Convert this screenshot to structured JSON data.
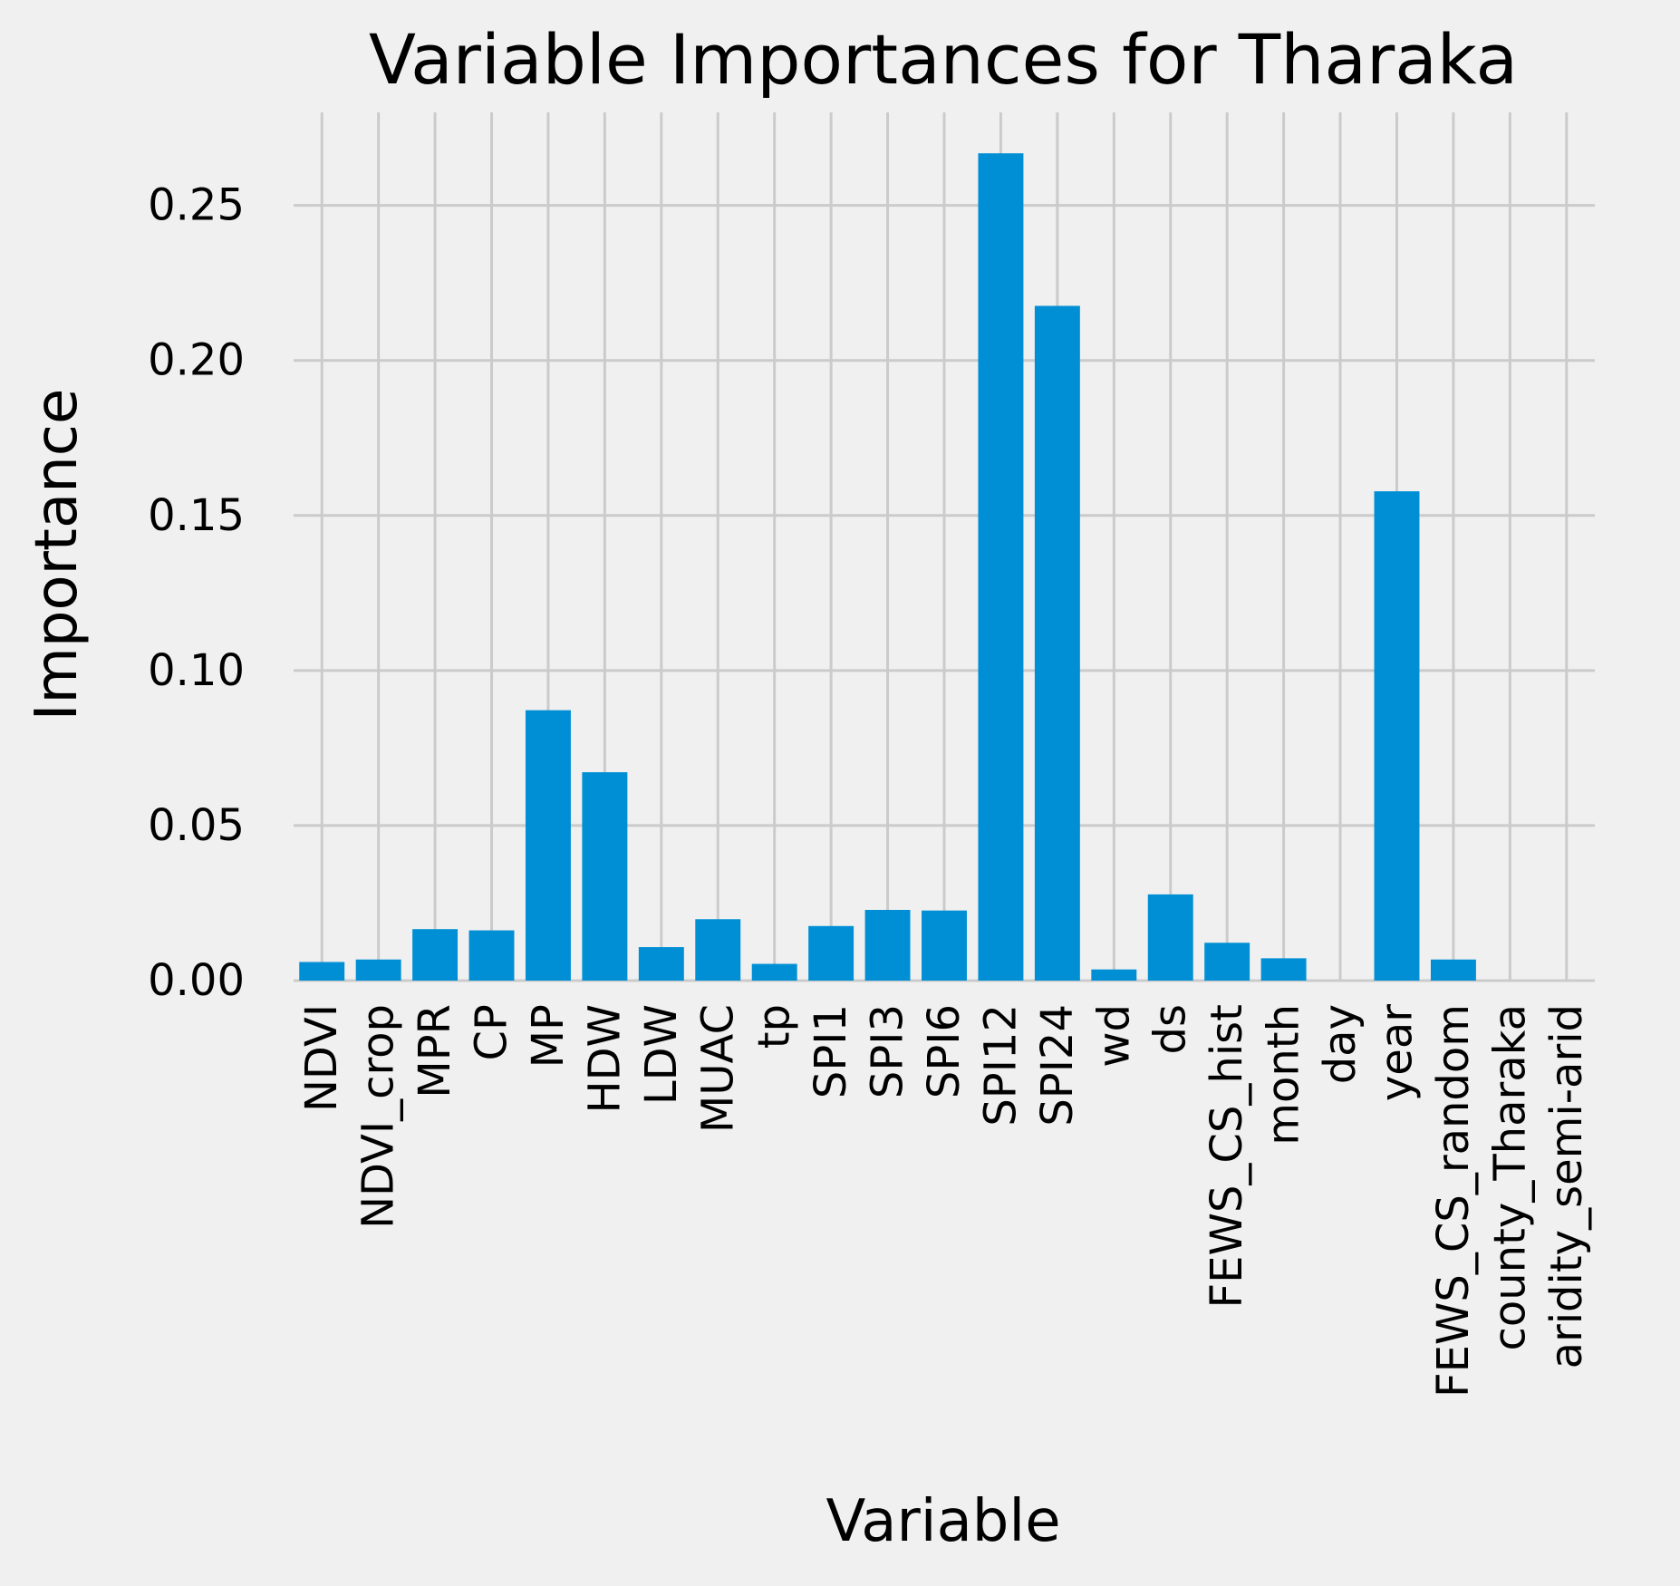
{
  "chart_data": {
    "type": "bar",
    "title": "Variable Importances for Tharaka",
    "xlabel": "Variable",
    "ylabel": "Importance",
    "categories": [
      "NDVI",
      "NDVI_crop",
      "MPR",
      "CP",
      "MP",
      "HDW",
      "LDW",
      "MUAC",
      "tp",
      "SPI1",
      "SPI3",
      "SPI6",
      "SPI12",
      "SPI24",
      "wd",
      "ds",
      "FEWS_CS_hist",
      "month",
      "day",
      "year",
      "FEWS_CS_random",
      "county_Tharaka",
      "aridity_semi-arid"
    ],
    "values": [
      0.006,
      0.0068,
      0.0166,
      0.0162,
      0.0872,
      0.0672,
      0.0108,
      0.0198,
      0.0054,
      0.0176,
      0.0228,
      0.0226,
      0.2668,
      0.2176,
      0.0036,
      0.0278,
      0.0122,
      0.0072,
      0.0,
      0.1578,
      0.0068,
      0.0,
      0.0
    ],
    "yticks": [
      0.0,
      0.05,
      0.1,
      0.15,
      0.2,
      0.25
    ],
    "ytick_labels": [
      "0.00",
      "0.05",
      "0.10",
      "0.15",
      "0.20",
      "0.25"
    ],
    "ylim": [
      0,
      0.28
    ],
    "grid": true,
    "colors": {
      "bar": "#008fd5",
      "background": "#f0f0f0",
      "grid": "#cbcbcb"
    }
  }
}
